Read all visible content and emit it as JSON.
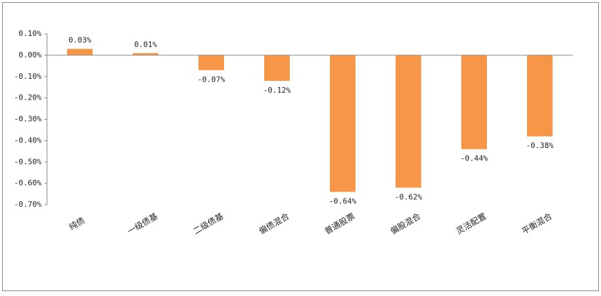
{
  "chart_data": {
    "type": "bar",
    "categories": [
      "纯债",
      "一级债基",
      "二级债基",
      "偏债混合",
      "普通股票",
      "偏股混合",
      "灵活配置",
      "平衡混合"
    ],
    "values": [
      0.03,
      0.01,
      -0.07,
      -0.12,
      -0.64,
      -0.62,
      -0.44,
      -0.38
    ],
    "value_labels": [
      "0.03%",
      "0.01%",
      "-0.07%",
      "-0.12%",
      "-0.64%",
      "-0.62%",
      "-0.44%",
      "-0.38%"
    ],
    "color": "#f79646",
    "ylim": [
      -0.7,
      0.1
    ],
    "yticks": [
      {
        "value": 0.1,
        "label": "0.10%"
      },
      {
        "value": 0,
        "label": "0.00%"
      },
      {
        "value": -0.1,
        "label": "-0.10%"
      },
      {
        "value": -0.2,
        "label": "-0.20%"
      },
      {
        "value": -0.3,
        "label": "-0.30%"
      },
      {
        "value": -0.4,
        "label": "-0.40%"
      },
      {
        "value": -0.5,
        "label": "-0.50%"
      },
      {
        "value": -0.6,
        "label": "-0.60%"
      },
      {
        "value": -0.7,
        "label": "-0.70%"
      }
    ],
    "grid": false
  }
}
